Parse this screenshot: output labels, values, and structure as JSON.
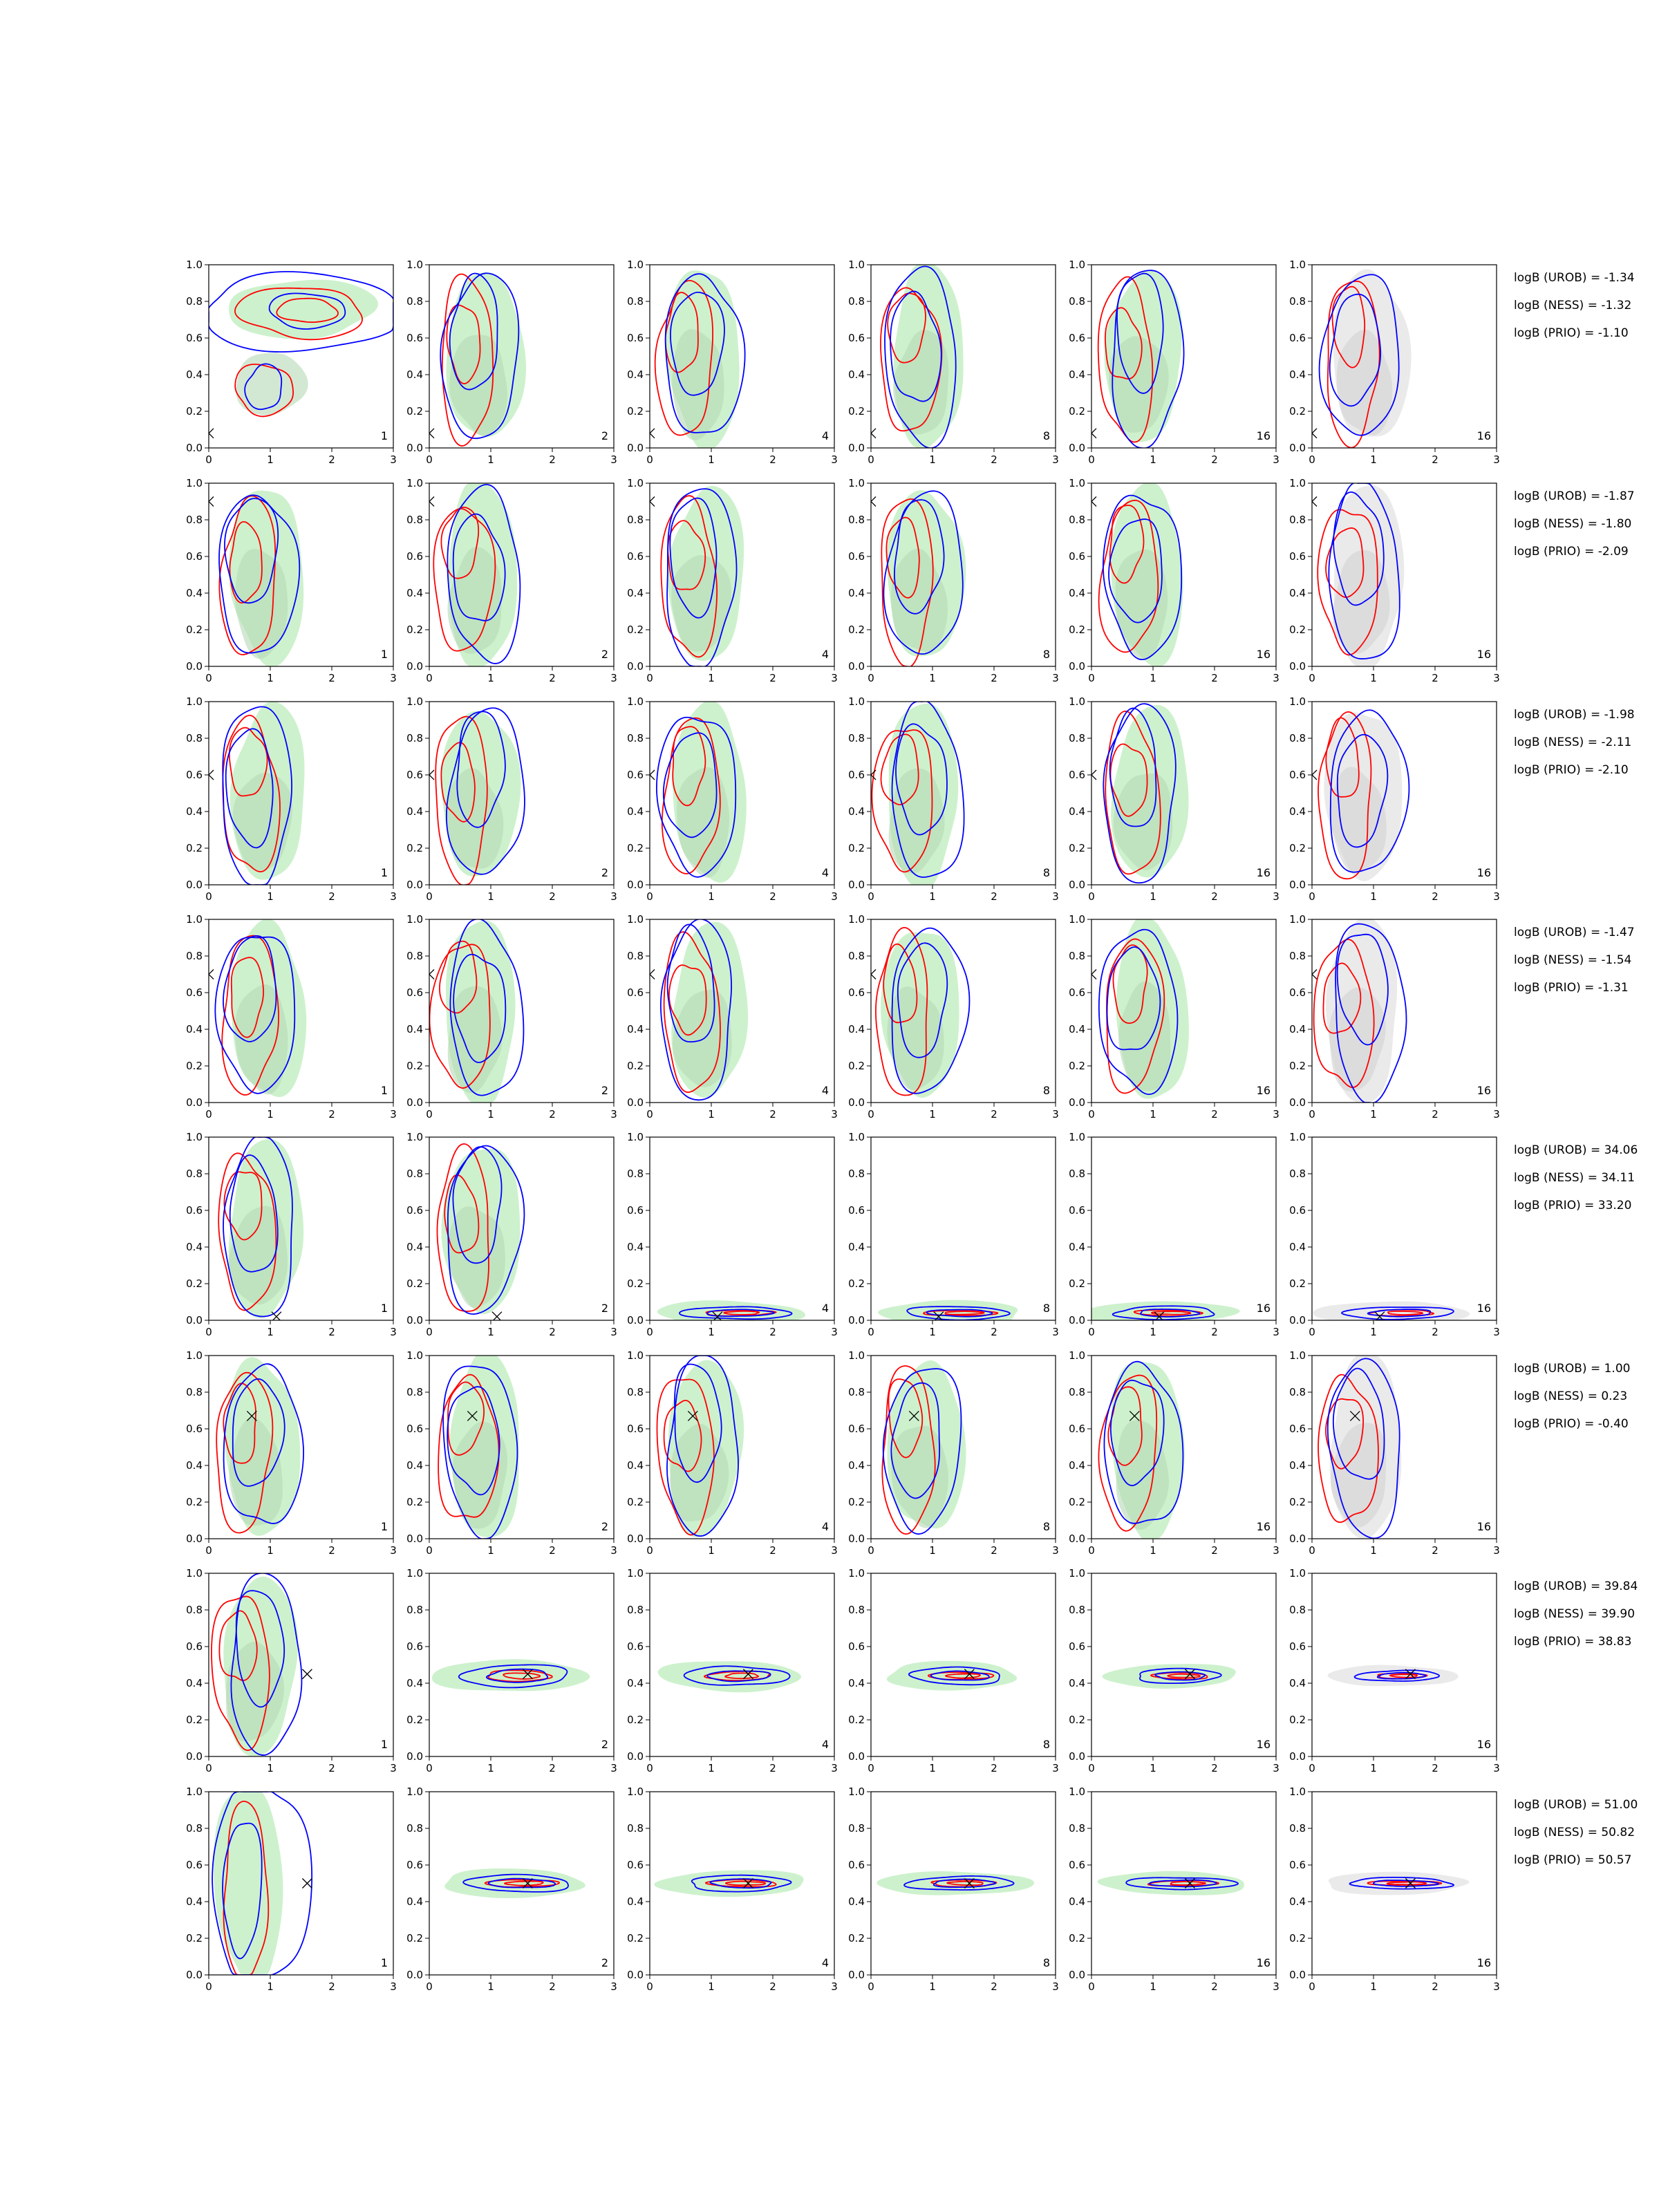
{
  "chart_data": {
    "type": "contour",
    "xlim": [
      0,
      3
    ],
    "ylim": [
      0,
      1
    ],
    "x_ticks": [
      "0",
      "1",
      "2",
      "3"
    ],
    "y_ticks": [
      "0.0",
      "0.2",
      "0.4",
      "0.6",
      "0.8",
      "1.0"
    ],
    "column_labels": [
      "1",
      "2",
      "4",
      "8",
      "16",
      "16"
    ],
    "colors": {
      "fill_green": "#c8efc8",
      "fill_green_dark": "#b5d8b5",
      "fill_gray": "#e8e8e8",
      "fill_gray_dark": "#d2d2d2",
      "contour_red": "#ff0000",
      "contour_blue": "#0000ff",
      "marker": "#000000"
    },
    "rows": [
      {
        "truth": [
          0.0,
          0.08
        ],
        "bayes_factors": [
          {
            "label": "logB (UROB) = -1.34"
          },
          {
            "label": "logB (NESS) = -1.32"
          },
          {
            "label": "logB (PRIO) = -1.10"
          }
        ]
      },
      {
        "truth": [
          0.0,
          0.9
        ],
        "bayes_factors": [
          {
            "label": "logB (UROB) = -1.87"
          },
          {
            "label": "logB (NESS) = -1.80"
          },
          {
            "label": "logB (PRIO) = -2.09"
          }
        ]
      },
      {
        "truth": [
          0.0,
          0.6
        ],
        "bayes_factors": [
          {
            "label": "logB (UROB) = -1.98"
          },
          {
            "label": "logB (NESS) = -2.11"
          },
          {
            "label": "logB (PRIO) = -2.10"
          }
        ]
      },
      {
        "truth": [
          0.0,
          0.7
        ],
        "bayes_factors": [
          {
            "label": "logB (UROB) = -1.47"
          },
          {
            "label": "logB (NESS) = -1.54"
          },
          {
            "label": "logB (PRIO) = -1.31"
          }
        ]
      },
      {
        "truth": [
          1.1,
          0.02
        ],
        "bayes_factors": [
          {
            "label": "logB (UROB) = 34.06"
          },
          {
            "label": "logB (NESS) = 34.11"
          },
          {
            "label": "logB (PRIO) = 33.20"
          }
        ]
      },
      {
        "truth": [
          0.7,
          0.67
        ],
        "bayes_factors": [
          {
            "label": "logB (UROB) = 1.00"
          },
          {
            "label": "logB (NESS) = 0.23"
          },
          {
            "label": "logB (PRIO) = -0.40"
          }
        ]
      },
      {
        "truth": [
          1.6,
          0.45
        ],
        "bayes_factors": [
          {
            "label": "logB (UROB) = 39.84"
          },
          {
            "label": "logB (NESS) = 39.90"
          },
          {
            "label": "logB (PRIO) = 38.83"
          }
        ]
      },
      {
        "truth": [
          1.6,
          0.5
        ],
        "bayes_factors": [
          {
            "label": "logB (UROB) = 51.00"
          },
          {
            "label": "logB (NESS) = 50.82"
          },
          {
            "label": "logB (PRIO) = 50.57"
          }
        ]
      }
    ]
  }
}
